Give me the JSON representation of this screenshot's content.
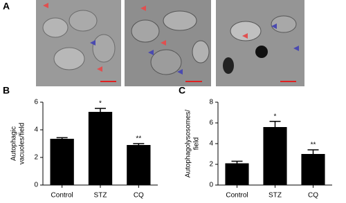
{
  "panel_a": {
    "label": "A"
  },
  "chart_data": [
    {
      "type": "bar",
      "panel": "B",
      "ylabel": [
        "Autophagic",
        "vacuoles/field"
      ],
      "categories": [
        "Control",
        "STZ",
        "CQ"
      ],
      "values": [
        3.35,
        5.3,
        2.9
      ],
      "errors": [
        0.08,
        0.25,
        0.1
      ],
      "significance": [
        null,
        "*",
        "**"
      ],
      "color": "#000000",
      "ylim": [
        0,
        6
      ],
      "yticks": [
        0,
        2,
        4,
        6
      ]
    },
    {
      "type": "bar",
      "panel": "C",
      "ylabel": [
        "Autophagolysosomes/",
        "field"
      ],
      "categories": [
        "Control",
        "STZ",
        "CQ"
      ],
      "values": [
        2.1,
        5.6,
        3.0
      ],
      "errors": [
        0.2,
        0.55,
        0.4
      ],
      "significance": [
        null,
        "*",
        "**"
      ],
      "color": "#000000",
      "ylim": [
        0,
        8
      ],
      "yticks": [
        0,
        2,
        4,
        6,
        8
      ]
    }
  ]
}
